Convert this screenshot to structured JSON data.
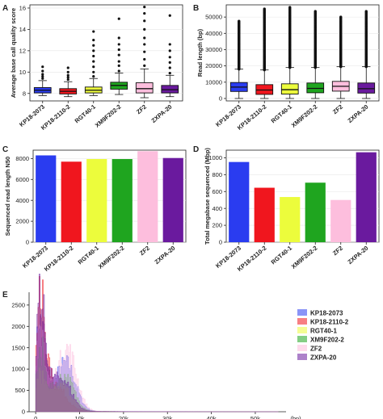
{
  "colors": {
    "KP18-2073": "#2a3cf0",
    "KP18-2110-2": "#f0161e",
    "RGT40-1": "#ecfc3c",
    "XM9F202-2": "#1fa51f",
    "ZF2": "#fdbedd",
    "ZXPA-20": "#6a1a9e"
  },
  "chart_data": [
    {
      "panel": "A",
      "type": "box",
      "ylabel": "Average base call quality score",
      "xlabel": "",
      "ylim": [
        7.3,
        16.3
      ],
      "yticks": [
        8,
        10,
        12,
        14,
        16
      ],
      "categories": [
        "KP18-2073",
        "KP18-2110-2",
        "RGT40-1",
        "XM9F202-2",
        "ZF2",
        "ZXPA-20"
      ],
      "boxes": [
        {
          "whislo": 7.8,
          "q1": 8.05,
          "med": 8.3,
          "q3": 8.55,
          "whishi": 9.2,
          "fliers": [
            9.4,
            9.6,
            9.8,
            10.1,
            10.5
          ]
        },
        {
          "whislo": 7.7,
          "q1": 7.95,
          "med": 8.2,
          "q3": 8.45,
          "whishi": 9.1,
          "fliers": [
            9.3,
            9.5,
            9.7,
            10.0,
            10.4
          ]
        },
        {
          "whislo": 7.8,
          "q1": 8.05,
          "med": 8.3,
          "q3": 8.6,
          "whishi": 9.4,
          "fliers": [
            9.6,
            10.0,
            10.5,
            11.0,
            11.5,
            12.0,
            12.5,
            13.0,
            13.8
          ]
        },
        {
          "whislo": 7.9,
          "q1": 8.4,
          "med": 8.75,
          "q3": 9.05,
          "whishi": 9.9,
          "fliers": [
            10.1,
            10.6,
            11.0,
            11.6,
            12.1,
            12.6,
            13.2,
            15.0
          ]
        },
        {
          "whislo": 7.6,
          "q1": 8.05,
          "med": 8.45,
          "q3": 9.0,
          "whishi": 10.3,
          "fliers": [
            10.6,
            11.2,
            11.9,
            12.6,
            13.2,
            14.0,
            14.8,
            15.5,
            16.1
          ]
        },
        {
          "whislo": 7.7,
          "q1": 8.05,
          "med": 8.35,
          "q3": 8.75,
          "whishi": 9.7,
          "fliers": [
            9.9,
            10.4,
            10.9,
            11.4,
            12.0,
            12.6,
            15.3
          ]
        }
      ]
    },
    {
      "panel": "B",
      "type": "box",
      "ylabel": "Read length (bp)",
      "xlabel": "",
      "ylim": [
        -1500,
        57500
      ],
      "yticks": [
        0,
        10000,
        20000,
        30000,
        40000,
        50000
      ],
      "ytick_labels": [
        "0",
        "10000",
        "20000",
        "30000",
        "40000",
        "50000"
      ],
      "categories": [
        "KP18-2073",
        "KP18-2110-2",
        "RGT40-1",
        "XM9F202-2",
        "ZF2",
        "ZXPA-20"
      ],
      "boxes": [
        {
          "whislo": 0,
          "q1": 4300,
          "med": 7000,
          "q3": 9800,
          "whishi": 18000,
          "flier_top": 47500
        },
        {
          "whislo": 0,
          "q1": 2500,
          "med": 5200,
          "q3": 8500,
          "whishi": 17500,
          "flier_top": 55000
        },
        {
          "whislo": 0,
          "q1": 2700,
          "med": 5400,
          "q3": 9000,
          "whishi": 19000,
          "flier_top": 56000
        },
        {
          "whislo": 0,
          "q1": 3500,
          "med": 6200,
          "q3": 9500,
          "whishi": 19000,
          "flier_top": 53500
        },
        {
          "whislo": 0,
          "q1": 4500,
          "med": 7500,
          "q3": 10500,
          "whishi": 19500,
          "flier_top": 50000
        },
        {
          "whislo": 0,
          "q1": 3300,
          "med": 6000,
          "q3": 9500,
          "whishi": 19500,
          "flier_top": 53500
        }
      ]
    },
    {
      "panel": "C",
      "type": "bar",
      "ylabel": "Sequenced read length N50",
      "xlabel": "",
      "ylim": [
        0,
        8800
      ],
      "yticks": [
        0,
        2000,
        4000,
        6000,
        8000
      ],
      "categories": [
        "KP18-2073",
        "KP18-2110-2",
        "RGT40-1",
        "XM9F202-2",
        "ZF2",
        "ZXPA-20"
      ],
      "values": [
        8300,
        7700,
        7950,
        7950,
        8700,
        8050
      ]
    },
    {
      "panel": "D",
      "type": "bar",
      "ylabel": "Total megabase sequenced (Mbp)",
      "xlabel": "",
      "ylim": [
        0,
        1090
      ],
      "yticks": [
        0,
        200,
        400,
        600,
        800,
        1000
      ],
      "categories": [
        "KP18-2073",
        "KP18-2110-2",
        "RGT40-1",
        "XM9F202-2",
        "ZF2",
        "ZXPA-20"
      ],
      "values": [
        950,
        645,
        535,
        705,
        500,
        1065
      ]
    },
    {
      "panel": "E",
      "type": "area",
      "ylabel": "",
      "xlabel": "(bp)",
      "xlim": [
        -1500,
        57000
      ],
      "ylim": [
        0,
        2800
      ],
      "yticks": [
        0,
        500,
        1000,
        1500,
        2000,
        2500
      ],
      "xticks": [
        0,
        10000,
        20000,
        30000,
        40000,
        50000
      ],
      "xtick_labels": [
        "0",
        "10k",
        "20k",
        "30k",
        "40k",
        "50k"
      ],
      "legend_position": "top-right",
      "legend": [
        "KP18-2073",
        "KP18-2110-2",
        "RGT40-1",
        "XM9F202-2",
        "ZF2",
        "ZXPA-20"
      ],
      "series": [
        {
          "name": "KP18-2073",
          "peak1": 2200,
          "peak2": 1100,
          "peak2_at": 6800
        },
        {
          "name": "KP18-2110-2",
          "peak1": 2650,
          "peak2": 450,
          "peak2_at": 5000
        },
        {
          "name": "RGT40-1",
          "peak1": 900,
          "peak2": 550,
          "peak2_at": 6000
        },
        {
          "name": "XM9F202-2",
          "peak1": 1400,
          "peak2": 800,
          "peak2_at": 6500
        },
        {
          "name": "ZF2",
          "peak1": 1800,
          "peak2": 1450,
          "peak2_at": 7000
        },
        {
          "name": "ZXPA-20",
          "peak1": 2700,
          "peak2": 700,
          "peak2_at": 6000
        }
      ]
    }
  ]
}
